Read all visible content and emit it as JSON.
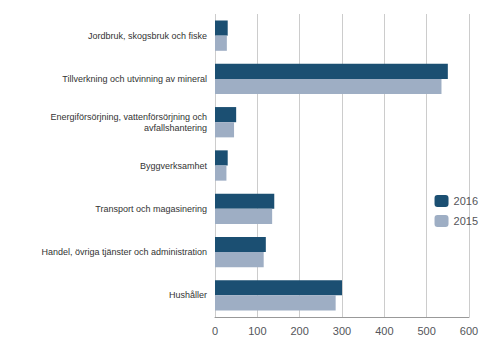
{
  "chart_data": {
    "type": "bar",
    "orientation": "horizontal",
    "categories": [
      "Jordbruk, skogsbruk och fiske",
      "Tillverkning och utvinning av mineral",
      "Energiförsörjning, vattenförsörjning och\navfallshantering",
      "Byggverksamhet",
      "Transport och magasinering",
      "Handel, övriga tjänster och administration",
      "Hushåller"
    ],
    "series": [
      {
        "name": "2016",
        "color": "#1b4f72",
        "values": [
          30,
          550,
          50,
          30,
          140,
          120,
          300
        ]
      },
      {
        "name": "2015",
        "color": "#9eaec4",
        "values": [
          28,
          535,
          45,
          27,
          135,
          115,
          285
        ]
      }
    ],
    "xlim": [
      0,
      600
    ],
    "xticks": [
      0,
      100,
      200,
      300,
      400,
      500,
      600
    ],
    "grid": true,
    "legend": "right"
  }
}
